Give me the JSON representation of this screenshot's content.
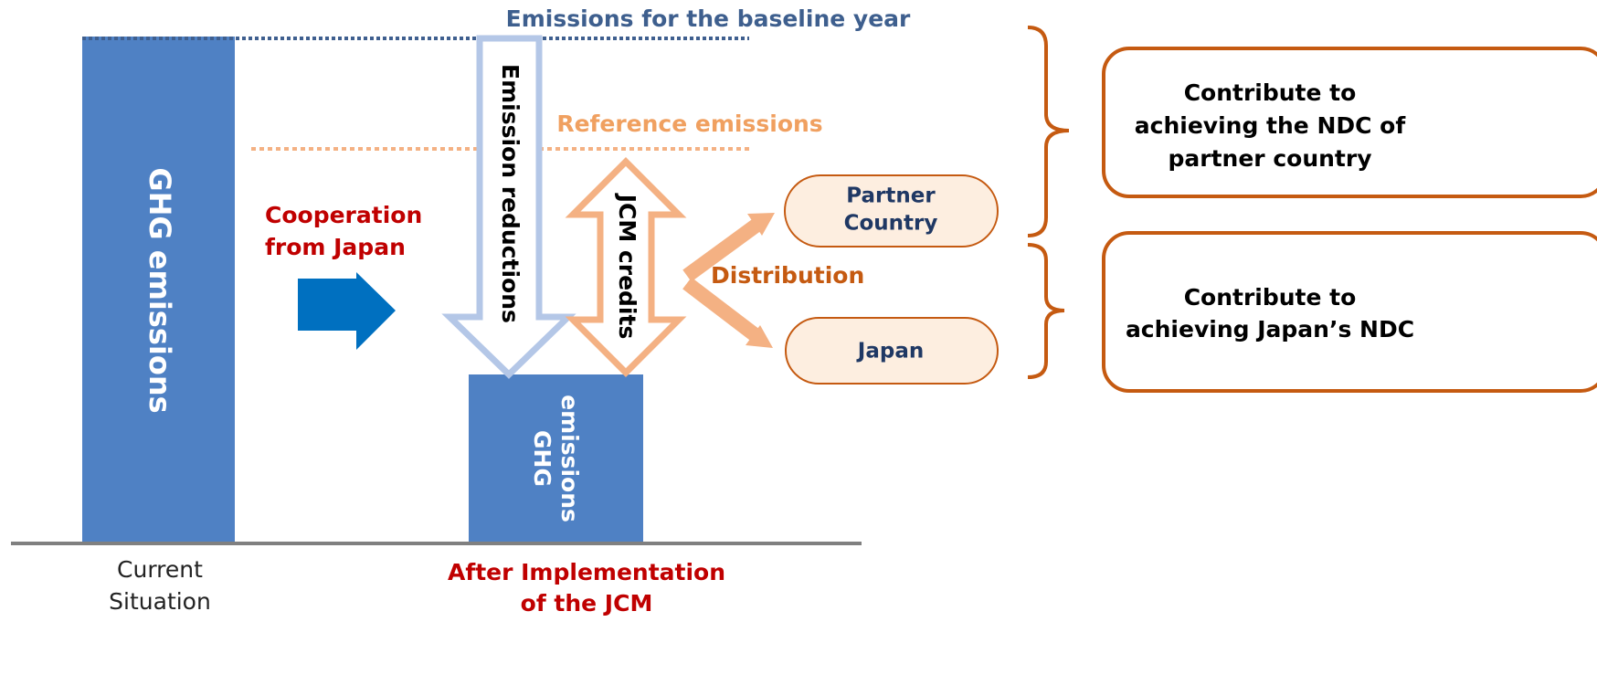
{
  "baseline_label": "Emissions for the baseline year",
  "reference_label": "Reference emissions",
  "current_bar_label": "GHG emissions",
  "after_bar_label": [
    "GHG",
    "emissions"
  ],
  "cooperation_label": [
    "Cooperation",
    "from Japan"
  ],
  "reductions_label": "Emission reductions",
  "credits_label": "JCM credits",
  "distribution_label": "Distribution",
  "recipients": [
    [
      "Partner",
      "Country"
    ],
    [
      "Japan"
    ]
  ],
  "contributions": [
    [
      "Contribute to",
      "achieving the NDC of",
      "partner country"
    ],
    [
      "Contribute to",
      "achieving Japan’s NDC"
    ]
  ],
  "x_labels": [
    [
      "Current",
      "Situation"
    ],
    [
      "After Implementation",
      "of the JCM"
    ]
  ]
}
